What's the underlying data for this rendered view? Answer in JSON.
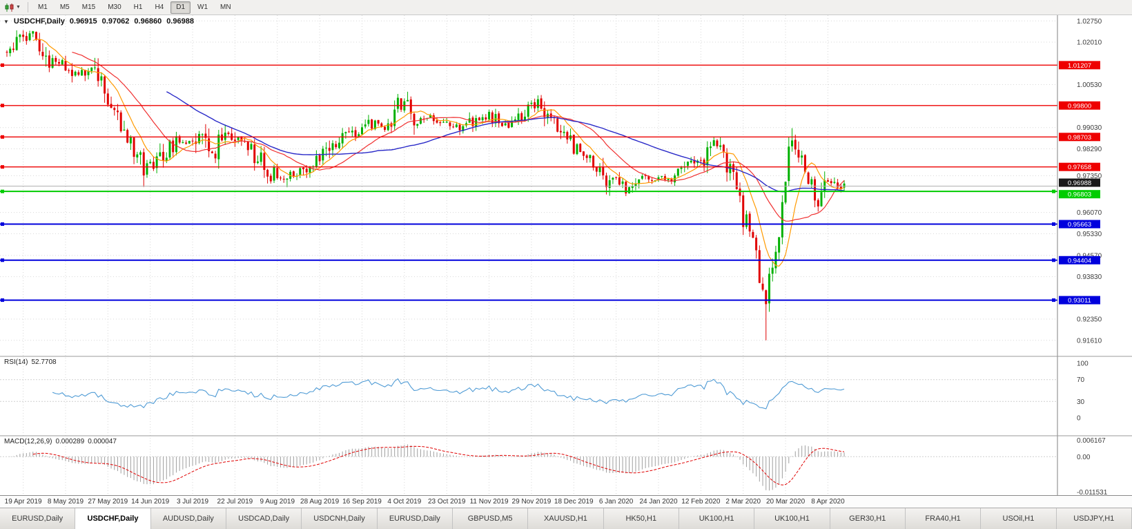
{
  "toolbar": {
    "timeframes": [
      "M1",
      "M5",
      "M15",
      "M30",
      "H1",
      "H4",
      "D1",
      "W1",
      "MN"
    ],
    "active_timeframe": "D1"
  },
  "chart_header": {
    "symbol": "USDCHF,Daily",
    "open": "0.96915",
    "high": "0.97062",
    "low": "0.96860",
    "close": "0.96988"
  },
  "indicators": {
    "rsi": {
      "label": "RSI(14)",
      "value": "52.7708",
      "levels": [
        100,
        70,
        30,
        0
      ]
    },
    "macd": {
      "label": "MACD(12,26,9)",
      "value_main": "0.000289",
      "value_signal": "0.000047",
      "scale": [
        {
          "v": 0.006167,
          "label": "0.006167"
        },
        {
          "v": 0.0,
          "label": "0.00"
        },
        {
          "v": -0.011531,
          "label": "-0.011531"
        }
      ]
    }
  },
  "chart_data": {
    "type": "candlestick",
    "symbol": "USDCHF",
    "timeframe": "Daily",
    "num_candles": 258,
    "price_range": [
      0.9105,
      1.0295
    ],
    "price_ticks": [
      1.0275,
      1.0201,
      1.0053,
      0.9903,
      0.9829,
      0.9735,
      0.9607,
      0.9533,
      0.9457,
      0.9383,
      0.9235,
      0.9161
    ],
    "current_price": {
      "value": 0.96988,
      "label": "0.96988",
      "badge_color": "#1a1a1a"
    },
    "h_lines": [
      {
        "value": 1.01207,
        "label": "1.01207",
        "type": "red"
      },
      {
        "value": 0.998,
        "label": "0.99800",
        "type": "red"
      },
      {
        "value": 0.98703,
        "label": "0.98703",
        "type": "red"
      },
      {
        "value": 0.97658,
        "label": "0.97658",
        "type": "red"
      },
      {
        "value": 0.96803,
        "label": "0.96803",
        "type": "green"
      },
      {
        "value": 0.95663,
        "label": "0.95663",
        "type": "blue"
      },
      {
        "value": 0.94404,
        "label": "0.94404",
        "type": "blue"
      },
      {
        "value": 0.93011,
        "label": "0.93011",
        "type": "blue"
      }
    ],
    "colors": {
      "candle_up": "#00b000",
      "candle_down": "#e00000",
      "line_red": "#ee0000",
      "line_green": "#00cc00",
      "line_blue": "#0000dd",
      "ma_fast": "#ff9a00",
      "ma_mid": "#f03030",
      "ma_slow": "#2a2ac8",
      "rsi_line": "#4f9bd5",
      "macd_hist": "#9e9e9e",
      "macd_signal": "#e00000",
      "grid": "#d7d7d7"
    },
    "ma_periods": {
      "fast": 9,
      "mid": 21,
      "slow": 50
    },
    "anchors": [
      [
        0,
        1.017
      ],
      [
        4,
        1.0205
      ],
      [
        9,
        1.0225
      ],
      [
        13,
        1.014
      ],
      [
        18,
        1.012
      ],
      [
        22,
        1.008
      ],
      [
        26,
        1.011
      ],
      [
        31,
        1.0005
      ],
      [
        34,
        0.993
      ],
      [
        38,
        0.9845
      ],
      [
        42,
        0.976
      ],
      [
        45,
        0.977
      ],
      [
        48,
        0.981
      ],
      [
        52,
        0.985
      ],
      [
        57,
        0.9865
      ],
      [
        59,
        0.9895
      ],
      [
        63,
        0.9815
      ],
      [
        68,
        0.989
      ],
      [
        70,
        0.986
      ],
      [
        74,
        0.9835
      ],
      [
        80,
        0.976
      ],
      [
        83,
        0.972
      ],
      [
        86,
        0.973
      ],
      [
        90,
        0.9745
      ],
      [
        96,
        0.9795
      ],
      [
        101,
        0.9855
      ],
      [
        105,
        0.988
      ],
      [
        109,
        0.99
      ],
      [
        113,
        0.992
      ],
      [
        117,
        0.9905
      ],
      [
        120,
        0.9975
      ],
      [
        123,
        0.9985
      ],
      [
        126,
        0.992
      ],
      [
        130,
        0.9935
      ],
      [
        135,
        0.9925
      ],
      [
        140,
        0.99
      ],
      [
        145,
        0.9935
      ],
      [
        148,
        0.9945
      ],
      [
        152,
        0.991
      ],
      [
        157,
        0.994
      ],
      [
        161,
        0.9975
      ],
      [
        164,
        0.999
      ],
      [
        168,
        0.992
      ],
      [
        171,
        0.989
      ],
      [
        174,
        0.984
      ],
      [
        178,
        0.9805
      ],
      [
        182,
        0.976
      ],
      [
        185,
        0.97
      ],
      [
        187,
        0.9715
      ],
      [
        190,
        0.9685
      ],
      [
        194,
        0.9715
      ],
      [
        200,
        0.9735
      ],
      [
        204,
        0.9725
      ],
      [
        208,
        0.976
      ],
      [
        213,
        0.9785
      ],
      [
        217,
        0.984
      ],
      [
        219,
        0.9845
      ],
      [
        222,
        0.975
      ],
      [
        226,
        0.959
      ],
      [
        229,
        0.952
      ],
      [
        231,
        0.94
      ],
      [
        233,
        0.93
      ],
      [
        235,
        0.942
      ],
      [
        237,
        0.952
      ],
      [
        239,
        0.975
      ],
      [
        241,
        0.989
      ],
      [
        243,
        0.983
      ],
      [
        245,
        0.975
      ],
      [
        247,
        0.969
      ],
      [
        249,
        0.963
      ],
      [
        251,
        0.969
      ],
      [
        253,
        0.972
      ],
      [
        255,
        0.969
      ],
      [
        257,
        0.9699
      ]
    ],
    "wick_overrides": [
      {
        "i": 9,
        "high": 1.0238
      },
      {
        "i": 42,
        "low": 0.9696
      },
      {
        "i": 86,
        "low": 0.9695
      },
      {
        "i": 123,
        "high": 1.0028
      },
      {
        "i": 185,
        "low": 0.9665
      },
      {
        "i": 233,
        "low": 0.9161
      },
      {
        "i": 241,
        "high": 0.9901
      },
      {
        "i": 249,
        "low": 0.961
      }
    ],
    "date_labels": [
      "19 Apr 2019",
      "8 May 2019",
      "27 May 2019",
      "14 Jun 2019",
      "3 Jul 2019",
      "22 Jul 2019",
      "9 Aug 2019",
      "28 Aug 2019",
      "16 Sep 2019",
      "4 Oct 2019",
      "23 Oct 2019",
      "11 Nov 2019",
      "29 Nov 2019",
      "18 Dec 2019",
      "6 Jan 2020",
      "24 Jan 2020",
      "12 Feb 2020",
      "2 Mar 2020",
      "20 Mar 2020",
      "8 Apr 2020"
    ]
  },
  "tabs": {
    "active_index": 1,
    "items": [
      "EURUSD,Daily",
      "USDCHF,Daily",
      "AUDUSD,Daily",
      "USDCAD,Daily",
      "USDCNH,Daily",
      "EURUSD,Daily",
      "GBPUSD,M5",
      "XAUUSD,H1",
      "HK50,H1",
      "UK100,H1",
      "UK100,H1",
      "GER30,H1",
      "FRA40,H1",
      "USOil,H1",
      "USDJPY,H1"
    ]
  }
}
